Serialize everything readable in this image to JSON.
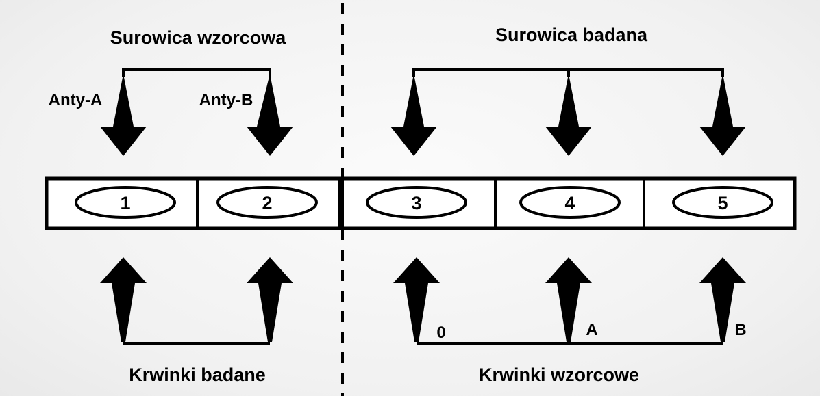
{
  "top": {
    "left_title": "Surowica wzorcowa",
    "right_title": "Surowica badana",
    "anty_a": "Anty-A",
    "anty_b": "Anty-B"
  },
  "wells": [
    "1",
    "2",
    "3",
    "4",
    "5"
  ],
  "bottom": {
    "left_title": "Krwinki badane",
    "right_title": "Krwinki wzorcowe",
    "label_0": "0",
    "label_a": "A",
    "label_b": "B"
  }
}
